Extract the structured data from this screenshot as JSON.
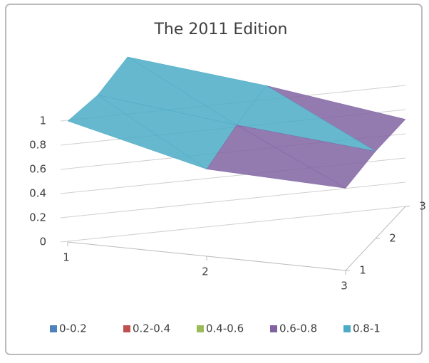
{
  "chart_data": {
    "type": "surface",
    "title": "The 2011 Edition",
    "x": [
      1,
      2,
      3
    ],
    "y": [
      1,
      2,
      3
    ],
    "z": [
      [
        1,
        0.72,
        0.68
      ],
      [
        0.95,
        0.82,
        0.72
      ],
      [
        1,
        0.88,
        0.72
      ]
    ],
    "zlim": [
      0,
      1
    ],
    "zticks": [
      0,
      0.2,
      0.4,
      0.6,
      0.8,
      1
    ],
    "grid": true,
    "bands": [
      {
        "name": "0-0.2",
        "color": "#4f81bd"
      },
      {
        "name": "0.2-0.4",
        "color": "#c0504d"
      },
      {
        "name": "0.4-0.6",
        "color": "#9bbb59"
      },
      {
        "name": "0.6-0.8",
        "color": "#8064a2"
      },
      {
        "name": "0.8-1",
        "color": "#4bacc6"
      }
    ],
    "legend": "bottom"
  }
}
